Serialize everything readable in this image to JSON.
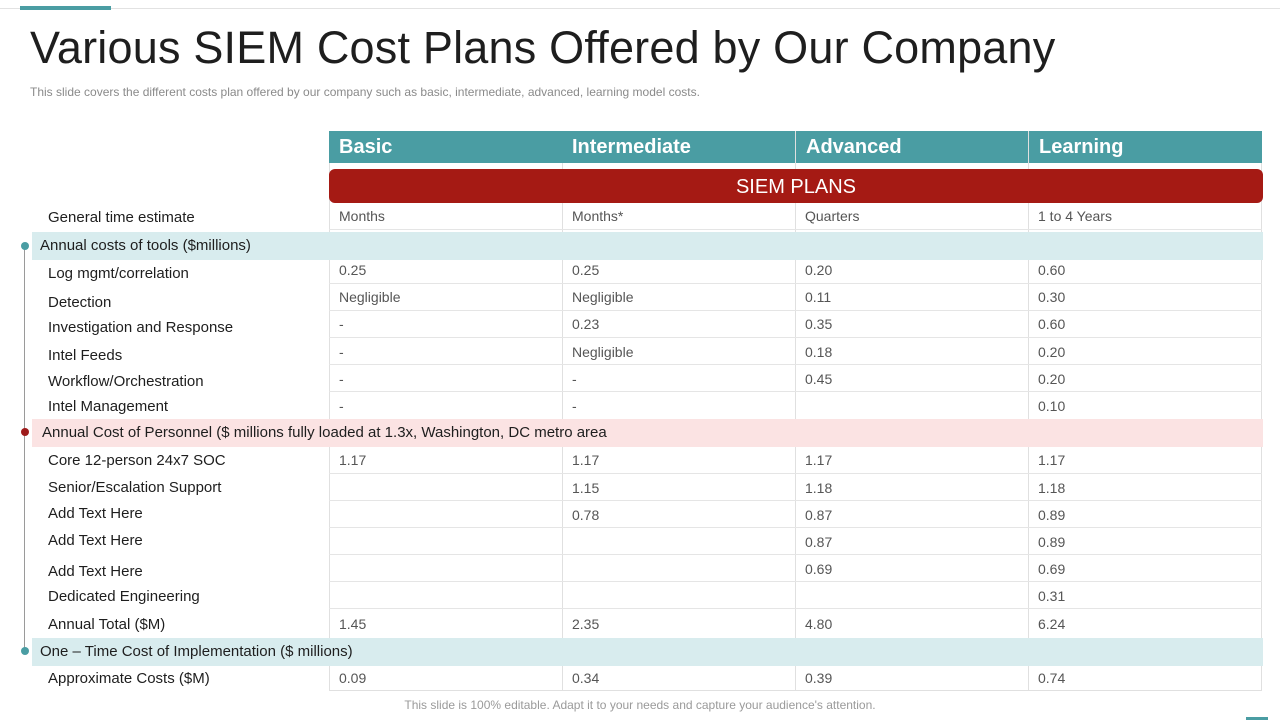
{
  "title": "Various SIEM Cost Plans Offered by Our Company",
  "subtitle": "This slide covers the different costs plan offered by our company such as basic, intermediate, advanced, learning model costs.",
  "columns": [
    "Basic",
    "Intermediate",
    "Advanced",
    "Learning"
  ],
  "band_label": "SIEM PLANS",
  "rows": [
    {
      "label": "General time estimate",
      "values": [
        "Months",
        "Months*",
        "Quarters",
        "1 to 4 Years"
      ]
    }
  ],
  "sections": [
    {
      "heading": "Annual costs of tools ($millions)",
      "rows": [
        {
          "label": "Log mgmt/correlation",
          "values": [
            "0.25",
            "0.25",
            "0.20",
            "0.60"
          ]
        },
        {
          "label": "Detection",
          "values": [
            "Negligible",
            "Negligible",
            "0.11",
            "0.30"
          ]
        },
        {
          "label": "Investigation and Response",
          "values": [
            "-",
            "0.23",
            "0.35",
            "0.60"
          ]
        },
        {
          "label": "Intel Feeds",
          "values": [
            "-",
            "Negligible",
            "0.18",
            "0.20"
          ]
        },
        {
          "label": "Workflow/Orchestration",
          "values": [
            "-",
            "-",
            "0.45",
            "0.20"
          ]
        },
        {
          "label": "Intel Management",
          "values": [
            "-",
            "-",
            "",
            "0.10"
          ]
        }
      ]
    },
    {
      "heading": "Annual Cost of Personnel ($ millions fully loaded at 1.3x, Washington, DC metro area",
      "rows": [
        {
          "label": "Core 12-person 24x7 SOC",
          "values": [
            "1.17",
            "1.17",
            "1.17",
            "1.17"
          ]
        },
        {
          "label": "Senior/Escalation Support",
          "values": [
            "",
            "1.15",
            "1.18",
            "1.18"
          ]
        },
        {
          "label": "Add Text Here",
          "values": [
            "",
            "0.78",
            "0.87",
            "0.89"
          ]
        },
        {
          "label": "Add Text Here",
          "values": [
            "",
            "",
            "0.87",
            "0.89"
          ]
        },
        {
          "label": "Add Text Here",
          "values": [
            "",
            "",
            "0.69",
            "0.69"
          ]
        },
        {
          "label": "Dedicated Engineering",
          "values": [
            "",
            "",
            "",
            "0.31"
          ]
        },
        {
          "label": "Annual Total ($M)",
          "values": [
            "1.45",
            "2.35",
            "4.80",
            "6.24"
          ]
        }
      ]
    },
    {
      "heading": "One – Time Cost of Implementation ($ millions)",
      "rows": [
        {
          "label": "Approximate Costs ($M)",
          "values": [
            "0.09",
            "0.34",
            "0.39",
            "0.74"
          ]
        }
      ]
    }
  ],
  "footer": "This slide is 100% editable. Adapt it to your needs and capture your audience's attention.",
  "colors": {
    "header_teal": "#4a9da3",
    "band_red": "#a51a14",
    "section_teal_bg": "#d8ecee",
    "section_pink_bg": "#fbe3e3"
  }
}
